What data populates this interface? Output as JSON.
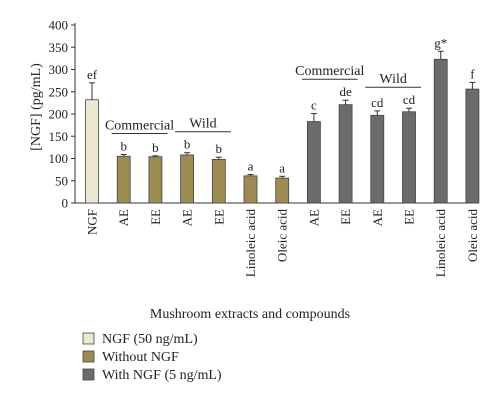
{
  "chart_data": {
    "type": "bar",
    "ylabel": "[NGF] (pg/mL)",
    "xlabel": "Mushroom extracts and compounds",
    "ylim": [
      0,
      400
    ],
    "yticks": [
      0,
      50,
      100,
      150,
      200,
      250,
      300,
      350,
      400
    ],
    "grid": false,
    "legend_position": "bottom-left",
    "categories": [
      "NGF",
      "AE",
      "EE",
      "AE",
      "EE",
      "Linoleic acid",
      "Oleic acid",
      "AE",
      "EE",
      "AE",
      "EE",
      "Linoleic acid",
      "Oleic acid"
    ],
    "bars": [
      {
        "category": "NGF",
        "series": "NGF (50 ng/mL)",
        "value": 232,
        "error": 38,
        "label": "ef"
      },
      {
        "category": "AE",
        "series": "Without NGF",
        "value": 105,
        "error": 4,
        "label": "b"
      },
      {
        "category": "EE",
        "series": "Without NGF",
        "value": 104,
        "error": 2,
        "label": "b"
      },
      {
        "category": "AE",
        "series": "Without NGF",
        "value": 108,
        "error": 5,
        "label": "b"
      },
      {
        "category": "EE",
        "series": "Without NGF",
        "value": 98,
        "error": 5,
        "label": "b"
      },
      {
        "category": "Linoleic acid",
        "series": "Without NGF",
        "value": 61,
        "error": 3,
        "label": "a"
      },
      {
        "category": "Oleic acid",
        "series": "Without NGF",
        "value": 56,
        "error": 4,
        "label": "a"
      },
      {
        "category": "AE",
        "series": "With NGF (5 ng/mL)",
        "value": 183,
        "error": 18,
        "label": "c"
      },
      {
        "category": "EE",
        "series": "With NGF (5 ng/mL)",
        "value": 221,
        "error": 10,
        "label": "de"
      },
      {
        "category": "AE",
        "series": "With NGF (5 ng/mL)",
        "value": 197,
        "error": 10,
        "label": "cd"
      },
      {
        "category": "EE",
        "series": "With NGF (5 ng/mL)",
        "value": 205,
        "error": 8,
        "label": "cd"
      },
      {
        "category": "Linoleic acid",
        "series": "With NGF (5 ng/mL)",
        "value": 323,
        "error": 18,
        "label": "g*"
      },
      {
        "category": "Oleic acid",
        "series": "With NGF (5 ng/mL)",
        "value": 256,
        "error": 15,
        "label": "f"
      }
    ],
    "group_labels": [
      {
        "text": "Commercial",
        "first_bar": 1,
        "last_bar": 2
      },
      {
        "text": "Wild",
        "first_bar": 3,
        "last_bar": 4
      },
      {
        "text": "Commercial",
        "first_bar": 7,
        "last_bar": 8
      },
      {
        "text": "Wild",
        "first_bar": 9,
        "last_bar": 10
      }
    ],
    "legend": [
      {
        "name": "NGF (50 ng/mL)",
        "color": "#ece7cf"
      },
      {
        "name": "Without NGF",
        "color": "#9d8b50"
      },
      {
        "name": "With NGF (5 ng/mL)",
        "color": "#6b6b6b"
      }
    ]
  }
}
